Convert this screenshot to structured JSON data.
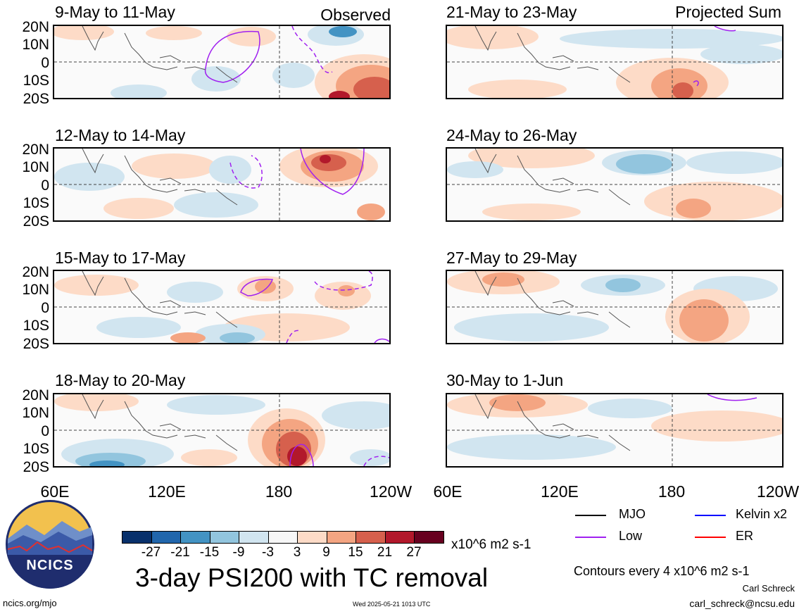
{
  "panels": [
    {
      "title": "9-May to 11-May",
      "tag": "Observed"
    },
    {
      "title": "12-May to 14-May",
      "tag": ""
    },
    {
      "title": "15-May to 17-May",
      "tag": ""
    },
    {
      "title": "18-May to 20-May",
      "tag": ""
    },
    {
      "title": "21-May to 23-May",
      "tag": "Projected Sum"
    },
    {
      "title": "24-May to 26-May",
      "tag": ""
    },
    {
      "title": "27-May to 29-May",
      "tag": ""
    },
    {
      "title": "30-May to 1-Jun",
      "tag": ""
    }
  ],
  "lat_labels": [
    "20N",
    "10N",
    "0",
    "10S",
    "20S"
  ],
  "lon_labels": [
    "60E",
    "120E",
    "180",
    "120W"
  ],
  "colorbar": {
    "colors": [
      "#08306b",
      "#2166ac",
      "#4393c3",
      "#92c5de",
      "#d1e5f0",
      "#f7f7f7",
      "#fddbc7",
      "#f4a582",
      "#d6604d",
      "#b2182b",
      "#67001f"
    ],
    "ticks": [
      "-27",
      "-21",
      "-15",
      "-9",
      "-3",
      "3",
      "9",
      "15",
      "21",
      "27"
    ],
    "units": "x10^6 m2 s-1"
  },
  "title": "3-day PSI200 with TC removal",
  "legend": {
    "items": [
      {
        "label": "MJO",
        "color": "#000000"
      },
      {
        "label": "Kelvin x2",
        "color": "#0000ff"
      },
      {
        "label": "Low",
        "color": "#a020f0"
      },
      {
        "label": "ER",
        "color": "#ff0000"
      }
    ],
    "contours_note": "Contours every 4 x10^6 m2 s-1"
  },
  "credits": {
    "author": "Carl Schreck",
    "email": "carl_schreck@ncsu.edu",
    "url": "ncics.org/mjo",
    "timestamp": "Wed 2025-05-21 1013 UTC"
  },
  "logo": {
    "text": "NCICS"
  }
}
